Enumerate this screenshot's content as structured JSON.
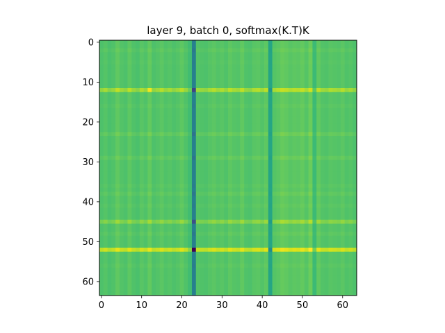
{
  "chart_data": {
    "type": "heatmap",
    "title": "layer 9, batch 0, softmax(K.T)K",
    "xlabel": "",
    "ylabel": "",
    "shape": [
      64,
      64
    ],
    "xlim": [
      -0.5,
      63.5
    ],
    "ylim": [
      63.5,
      -0.5
    ],
    "x_ticks": [
      0,
      10,
      20,
      30,
      40,
      50,
      60
    ],
    "y_ticks": [
      0,
      10,
      20,
      30,
      40,
      50,
      60
    ],
    "y_inverted": true,
    "colormap": "viridis",
    "value_range": [
      0,
      1
    ],
    "baseline_value": 0.64,
    "background_color": "#3cbb75",
    "row_deviation": [
      0,
      0,
      0.03,
      0,
      0,
      0.01,
      0,
      0,
      0,
      0,
      0,
      0,
      0.28,
      0,
      0,
      0,
      0.02,
      0,
      0,
      0,
      0,
      0,
      0,
      0.06,
      0,
      0,
      0,
      0,
      0,
      0.05,
      0,
      0,
      0,
      0,
      0,
      0,
      0.02,
      0,
      0.04,
      0,
      0,
      0.02,
      0,
      0,
      0,
      0.18,
      0,
      0,
      0.03,
      0,
      0,
      0,
      0.46,
      0,
      0,
      0,
      0.02,
      0,
      0,
      0,
      0,
      0,
      0,
      0
    ],
    "col_deviation": [
      0.01,
      0.04,
      0,
      0.02,
      0.08,
      0.03,
      0.01,
      0.07,
      0.02,
      0,
      0.05,
      0.02,
      0.09,
      0.01,
      0.03,
      0.06,
      0.02,
      0.04,
      0.01,
      0.03,
      0.07,
      0.02,
      -0.04,
      -0.55,
      0.03,
      0.02,
      0.01,
      0.04,
      0.06,
      0.03,
      0.05,
      0.02,
      0.07,
      0.04,
      0.03,
      0.08,
      0.02,
      0.01,
      0.05,
      0.06,
      0.03,
      0.07,
      -0.25,
      0.04,
      0.06,
      0.1,
      0.08,
      0.05,
      0.07,
      0.06,
      0.09,
      0.04,
      0.12,
      -0.06,
      0.08,
      0.03,
      0.02,
      0.05,
      0.04,
      0.03,
      0.06,
      0.02,
      0.04,
      0.01
    ],
    "extreme_cells": [
      {
        "row": 52,
        "col": 23,
        "value": 0.0
      },
      {
        "row": 12,
        "col": 23,
        "value": 0.18
      },
      {
        "row": 45,
        "col": 23,
        "value": 0.22
      },
      {
        "row": 52,
        "col": 52,
        "value": 1.0
      },
      {
        "row": 12,
        "col": 12,
        "value": 0.96
      }
    ]
  }
}
